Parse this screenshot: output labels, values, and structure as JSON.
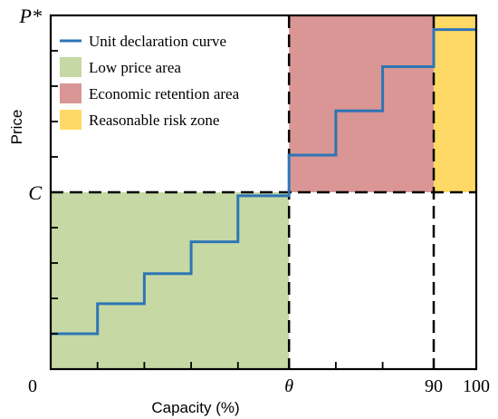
{
  "chart_data": {
    "type": "line",
    "title": "",
    "xlabel": "Capacity (%)",
    "ylabel": "Price",
    "xlim": [
      0,
      100
    ],
    "ylim": [
      0,
      1
    ],
    "x_tick_labels": [
      {
        "value": 0,
        "label": "0"
      },
      {
        "value": 56,
        "label": "θ"
      },
      {
        "value": 90,
        "label": "90"
      },
      {
        "value": 100,
        "label": "100"
      }
    ],
    "y_tick_labels": [
      {
        "value": 0.5,
        "label": "C"
      },
      {
        "value": 1,
        "label": "P*"
      }
    ],
    "x_minor_ticks": [
      11,
      22,
      33,
      44,
      56,
      67,
      78,
      90
    ],
    "y_minor_ticks": [
      0.1,
      0.2,
      0.3,
      0.4,
      0.6,
      0.7,
      0.8,
      0.9
    ],
    "dashed_lines": {
      "horizontal_y": 0.5,
      "vertical_x": [
        56,
        90
      ]
    },
    "regions": [
      {
        "name": "Low price area",
        "x": [
          0,
          56
        ],
        "y": [
          0,
          0.5
        ],
        "color": "#c6d9a4"
      },
      {
        "name": "Economic retention area",
        "x": [
          56,
          90
        ],
        "y": [
          0.5,
          1
        ],
        "color": "#d99694"
      },
      {
        "name": "Reasonable risk zone",
        "x": [
          90,
          100
        ],
        "y": [
          0.5,
          1
        ],
        "color": "#ffd966"
      }
    ],
    "series": [
      {
        "name": "Unit declaration curve",
        "color": "#2e75b6",
        "step_points": [
          [
            0,
            0.1
          ],
          [
            11,
            0.1
          ],
          [
            11,
            0.185
          ],
          [
            22,
            0.185
          ],
          [
            22,
            0.27
          ],
          [
            33,
            0.27
          ],
          [
            33,
            0.36
          ],
          [
            44,
            0.36
          ],
          [
            44,
            0.49
          ],
          [
            56,
            0.49
          ],
          [
            56,
            0.605
          ],
          [
            67,
            0.605
          ],
          [
            67,
            0.73
          ],
          [
            78,
            0.73
          ],
          [
            78,
            0.855
          ],
          [
            90,
            0.855
          ],
          [
            90,
            0.96
          ],
          [
            100,
            0.96
          ]
        ]
      }
    ],
    "legend": {
      "position": "top-left",
      "entries": [
        {
          "label": "Unit declaration curve",
          "kind": "line",
          "color": "#2e75b6"
        },
        {
          "label": "Low price area",
          "kind": "patch",
          "color": "#c6d9a4"
        },
        {
          "label": "Economic retention area",
          "kind": "patch",
          "color": "#d99694"
        },
        {
          "label": "Reasonable risk zone",
          "kind": "patch",
          "color": "#ffd966"
        }
      ]
    }
  }
}
